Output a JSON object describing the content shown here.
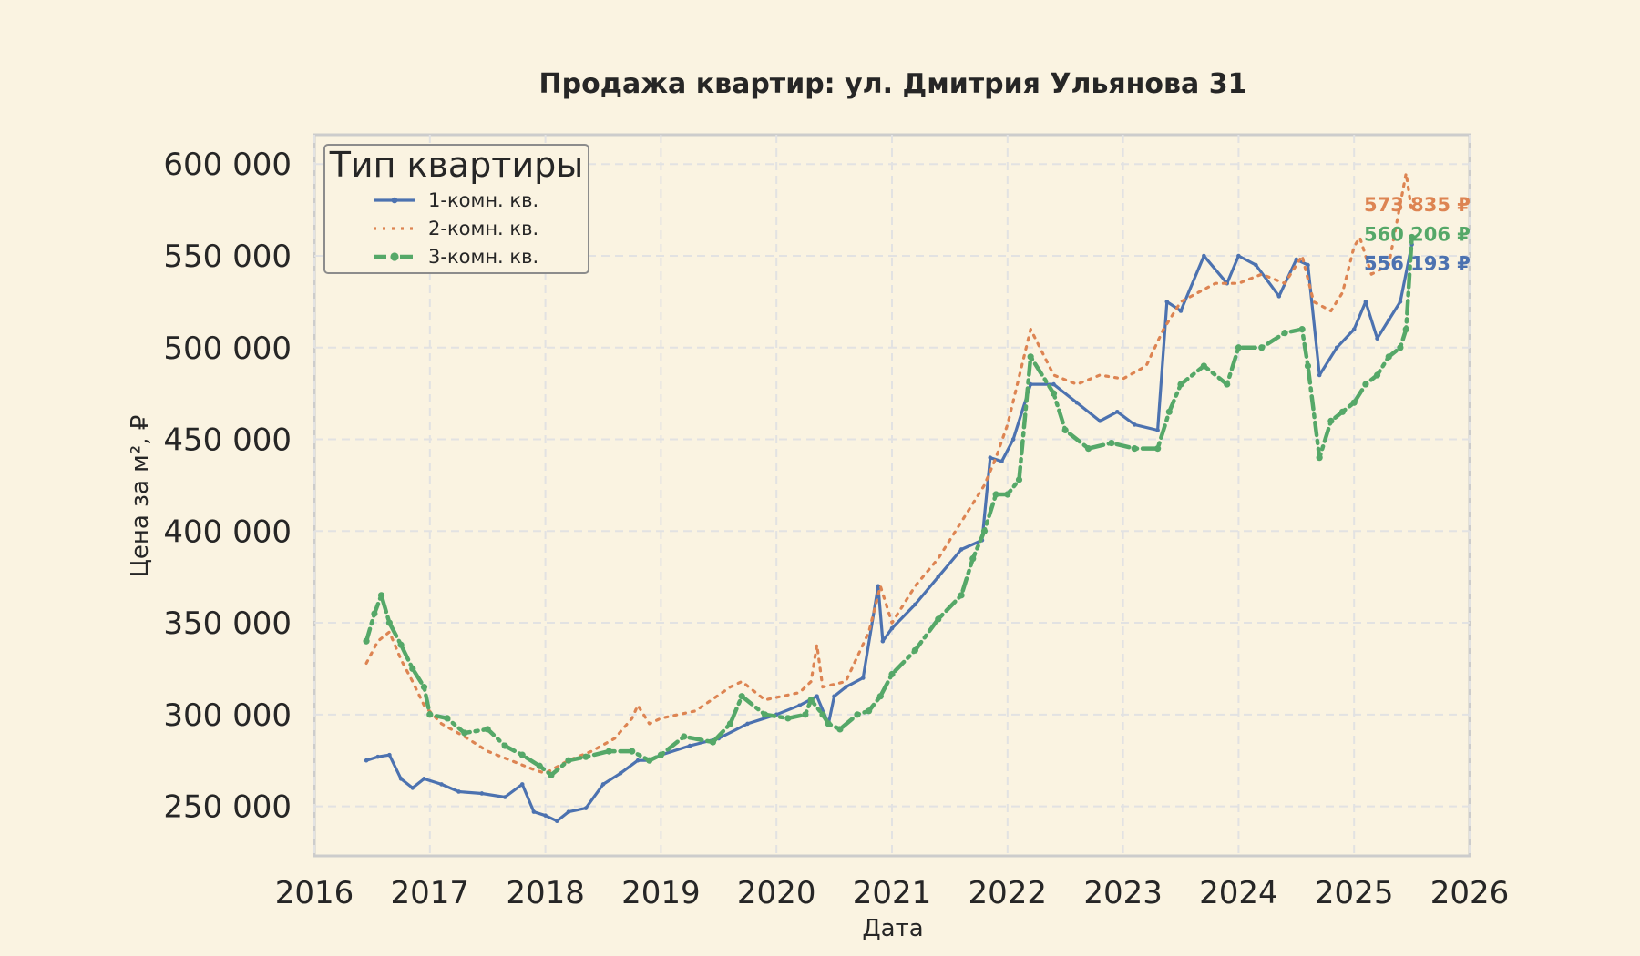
{
  "chart_data": {
    "type": "line",
    "title": "Продажа квартир: ул. Дмитрия Ульянова 31",
    "xlabel": "Дата",
    "ylabel": "Цена за м², ₽",
    "xlim": [
      2016.0,
      2026.0
    ],
    "ylim": [
      223000,
      616000
    ],
    "x_ticks": [
      "2016",
      "2017",
      "2018",
      "2019",
      "2020",
      "2021",
      "2022",
      "2023",
      "2024",
      "2025",
      "2026"
    ],
    "y_ticks": [
      "250 000",
      "300 000",
      "350 000",
      "400 000",
      "450 000",
      "500 000",
      "550 000",
      "600 000"
    ],
    "grid": true,
    "legend": {
      "title": "Тип квартиры",
      "position": "top-left"
    },
    "series": [
      {
        "name": "1-комн. кв.",
        "color": "#4c72b0",
        "style": "solid",
        "end_label": "556 193 ₽",
        "x": [
          2016.45,
          2016.55,
          2016.65,
          2016.75,
          2016.85,
          2016.95,
          2017.1,
          2017.25,
          2017.45,
          2017.65,
          2017.8,
          2017.9,
          2018.0,
          2018.1,
          2018.2,
          2018.35,
          2018.5,
          2018.65,
          2018.8,
          2018.9,
          2019.0,
          2019.25,
          2019.5,
          2019.75,
          2020.0,
          2020.2,
          2020.35,
          2020.45,
          2020.5,
          2020.6,
          2020.75,
          2020.88,
          2020.92,
          2021.0,
          2021.2,
          2021.4,
          2021.6,
          2021.78,
          2021.85,
          2021.95,
          2022.05,
          2022.2,
          2022.4,
          2022.6,
          2022.8,
          2022.95,
          2023.1,
          2023.3,
          2023.38,
          2023.5,
          2023.7,
          2023.9,
          2024.0,
          2024.15,
          2024.35,
          2024.5,
          2024.6,
          2024.7,
          2024.85,
          2025.0,
          2025.1,
          2025.2,
          2025.3,
          2025.4,
          2025.5
        ],
        "y": [
          275000,
          277000,
          278000,
          265000,
          260000,
          265000,
          262000,
          258000,
          257000,
          255000,
          262000,
          247000,
          245000,
          242000,
          247000,
          249000,
          262000,
          268000,
          275000,
          275000,
          278000,
          283000,
          287000,
          295000,
          300000,
          305000,
          310000,
          295000,
          310000,
          315000,
          320000,
          370000,
          340000,
          347000,
          360000,
          375000,
          390000,
          395000,
          440000,
          438000,
          450000,
          480000,
          480000,
          470000,
          460000,
          465000,
          458000,
          455000,
          525000,
          520000,
          550000,
          535000,
          550000,
          545000,
          528000,
          548000,
          545000,
          485000,
          500000,
          510000,
          525000,
          505000,
          515000,
          525000,
          556193
        ]
      },
      {
        "name": "2-комн. кв.",
        "color": "#dd8452",
        "style": "dotted",
        "end_label": "573 835 ₽",
        "x": [
          2016.45,
          2016.55,
          2016.65,
          2016.75,
          2016.85,
          2016.95,
          2017.1,
          2017.3,
          2017.5,
          2017.7,
          2017.9,
          2018.0,
          2018.2,
          2018.4,
          2018.6,
          2018.75,
          2018.8,
          2018.9,
          2019.0,
          2019.3,
          2019.6,
          2019.7,
          2019.9,
          2020.2,
          2020.3,
          2020.35,
          2020.4,
          2020.6,
          2020.8,
          2020.9,
          2021.0,
          2021.2,
          2021.4,
          2021.6,
          2021.8,
          2021.9,
          2022.0,
          2022.2,
          2022.4,
          2022.6,
          2022.8,
          2023.0,
          2023.2,
          2023.35,
          2023.5,
          2023.8,
          2024.0,
          2024.2,
          2024.4,
          2024.55,
          2024.65,
          2024.8,
          2024.9,
          2025.0,
          2025.05,
          2025.15,
          2025.3,
          2025.45,
          2025.5
        ],
        "y": [
          328000,
          340000,
          345000,
          330000,
          318000,
          305000,
          295000,
          288000,
          280000,
          275000,
          270000,
          268000,
          275000,
          280000,
          287000,
          298000,
          305000,
          295000,
          298000,
          302000,
          315000,
          318000,
          308000,
          312000,
          318000,
          338000,
          315000,
          318000,
          345000,
          370000,
          350000,
          370000,
          385000,
          405000,
          425000,
          440000,
          458000,
          510000,
          485000,
          480000,
          485000,
          483000,
          490000,
          510000,
          525000,
          535000,
          535000,
          540000,
          535000,
          550000,
          525000,
          520000,
          530000,
          555000,
          560000,
          540000,
          545000,
          595000,
          573835
        ]
      },
      {
        "name": "3-комн. кв.",
        "color": "#55a868",
        "style": "dash-dot",
        "end_label": "560 206 ₽",
        "x": [
          2016.45,
          2016.52,
          2016.58,
          2016.65,
          2016.75,
          2016.85,
          2016.95,
          2017.0,
          2017.15,
          2017.3,
          2017.5,
          2017.65,
          2017.8,
          2017.95,
          2018.05,
          2018.2,
          2018.35,
          2018.55,
          2018.75,
          2018.9,
          2019.0,
          2019.2,
          2019.45,
          2019.6,
          2019.7,
          2019.9,
          2020.1,
          2020.25,
          2020.3,
          2020.4,
          2020.45,
          2020.55,
          2020.7,
          2020.8,
          2020.9,
          2021.0,
          2021.2,
          2021.4,
          2021.6,
          2021.7,
          2021.8,
          2021.9,
          2022.0,
          2022.1,
          2022.2,
          2022.4,
          2022.5,
          2022.7,
          2022.9,
          2023.1,
          2023.3,
          2023.4,
          2023.5,
          2023.7,
          2023.9,
          2024.0,
          2024.2,
          2024.4,
          2024.55,
          2024.6,
          2024.7,
          2024.8,
          2024.9,
          2025.0,
          2025.1,
          2025.2,
          2025.3,
          2025.4,
          2025.45,
          2025.5
        ],
        "y": [
          340000,
          355000,
          365000,
          350000,
          338000,
          325000,
          315000,
          300000,
          298000,
          290000,
          292000,
          283000,
          278000,
          272000,
          267000,
          275000,
          277000,
          280000,
          280000,
          275000,
          278000,
          288000,
          285000,
          295000,
          310000,
          300000,
          298000,
          300000,
          308000,
          300000,
          295000,
          292000,
          300000,
          302000,
          310000,
          322000,
          335000,
          352000,
          365000,
          385000,
          400000,
          420000,
          420000,
          428000,
          495000,
          475000,
          455000,
          445000,
          448000,
          445000,
          445000,
          465000,
          480000,
          490000,
          480000,
          500000,
          500000,
          508000,
          510000,
          490000,
          440000,
          460000,
          465000,
          470000,
          480000,
          485000,
          495000,
          500000,
          510000,
          560206
        ]
      }
    ]
  }
}
